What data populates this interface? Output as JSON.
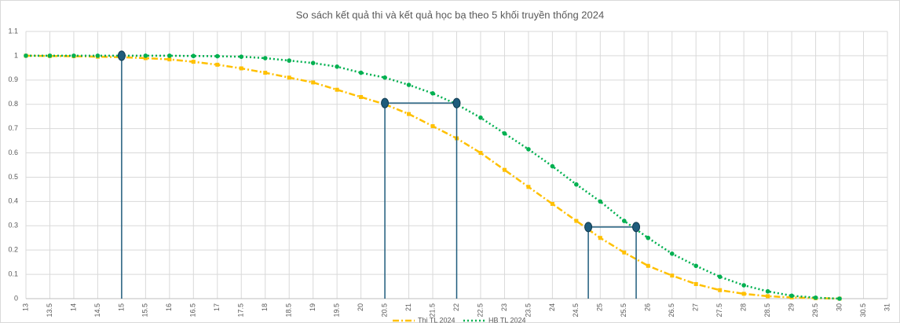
{
  "chart_data": {
    "type": "line",
    "title": "So sách kết quả thi và kết quả học bạ theo 5 khối truyền thống 2024",
    "x": [
      13,
      13.5,
      14,
      14.5,
      15,
      15.5,
      16,
      16.5,
      17,
      17.5,
      18,
      18.5,
      19,
      19.5,
      20,
      20.5,
      21,
      21.5,
      22,
      22.5,
      23,
      23.5,
      24,
      24.5,
      25,
      25.5,
      26,
      26.5,
      27,
      27.5,
      28,
      28.5,
      29,
      29.5,
      30
    ],
    "series": [
      {
        "name": "Thi TL 2024",
        "color": "#ffc000",
        "values": [
          1.0,
          0.999,
          0.998,
          0.996,
          0.994,
          0.99,
          0.985,
          0.975,
          0.963,
          0.948,
          0.93,
          0.91,
          0.89,
          0.86,
          0.83,
          0.8,
          0.76,
          0.71,
          0.66,
          0.6,
          0.53,
          0.46,
          0.39,
          0.32,
          0.25,
          0.19,
          0.135,
          0.095,
          0.06,
          0.035,
          0.02,
          0.01,
          0.005,
          0.002,
          0
        ]
      },
      {
        "name": "HB TL 2024",
        "color": "#00b050",
        "values": [
          1.0,
          1.0,
          1.0,
          1.0,
          1.0,
          1.0,
          1.0,
          0.999,
          0.998,
          0.996,
          0.99,
          0.98,
          0.97,
          0.955,
          0.93,
          0.91,
          0.88,
          0.845,
          0.8,
          0.745,
          0.68,
          0.615,
          0.545,
          0.47,
          0.4,
          0.32,
          0.25,
          0.185,
          0.135,
          0.09,
          0.055,
          0.03,
          0.012,
          0.004,
          0
        ]
      }
    ],
    "guide_lines": [
      {
        "x": [
          15
        ],
        "y": 1.0
      },
      {
        "x": [
          20.5,
          22
        ],
        "y": 0.805
      },
      {
        "x": [
          24.75,
          25.75
        ],
        "y": 0.295
      }
    ],
    "guide_color": "#1f5c7c",
    "xlim": [
      13,
      31
    ],
    "xticks": [
      13,
      13.5,
      14,
      14.5,
      15,
      15.5,
      16,
      16.5,
      17,
      17.5,
      18,
      18.5,
      19,
      19.5,
      20,
      20.5,
      21,
      21.5,
      22,
      22.5,
      23,
      23.5,
      24,
      24.5,
      25,
      25.5,
      26,
      26.5,
      27,
      27.5,
      28,
      28.5,
      29,
      29.5,
      30,
      30.5,
      31
    ],
    "ylim": [
      0,
      1.1
    ],
    "yticks": [
      0,
      0.1,
      0.2,
      0.3,
      0.4,
      0.5,
      0.6,
      0.7,
      0.8,
      0.9,
      1,
      1.1
    ],
    "grid": true
  }
}
